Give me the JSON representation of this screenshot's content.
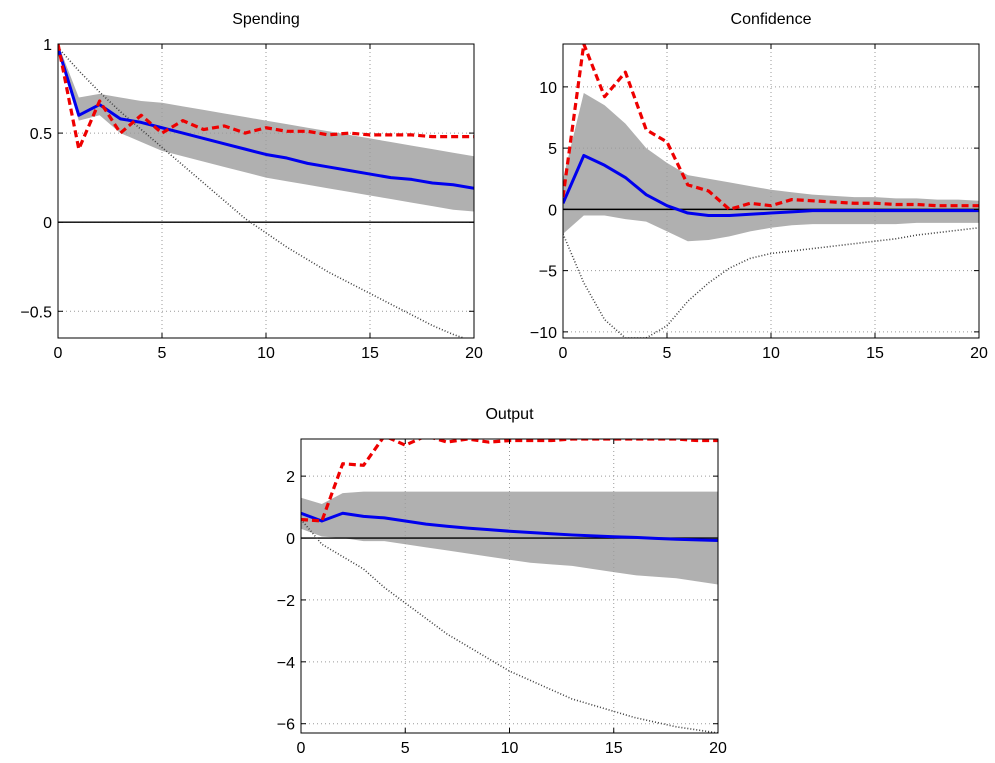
{
  "chart_data": [
    {
      "type": "line",
      "title": "Spending",
      "xlabel": "",
      "ylabel": "",
      "xlim": [
        0,
        20
      ],
      "ylim": [
        -0.65,
        1
      ],
      "xticks": [
        0,
        5,
        10,
        15,
        20
      ],
      "yticks": [
        -0.5,
        0,
        0.5,
        1
      ],
      "xtick_labels": [
        "0",
        "5",
        "10",
        "15",
        "20"
      ],
      "ytick_labels": [
        "−0.5",
        "0",
        "0.5",
        "1"
      ],
      "grid": true,
      "zero_line": true,
      "x": [
        0,
        1,
        2,
        3,
        4,
        5,
        6,
        7,
        8,
        9,
        10,
        11,
        12,
        13,
        14,
        15,
        16,
        17,
        18,
        19,
        20
      ],
      "band": {
        "upper": [
          1.0,
          0.7,
          0.72,
          0.7,
          0.68,
          0.67,
          0.65,
          0.63,
          0.61,
          0.59,
          0.57,
          0.55,
          0.53,
          0.51,
          0.49,
          0.47,
          0.45,
          0.43,
          0.41,
          0.39,
          0.37
        ],
        "lower": [
          0.95,
          0.57,
          0.6,
          0.5,
          0.45,
          0.4,
          0.37,
          0.34,
          0.31,
          0.28,
          0.25,
          0.23,
          0.21,
          0.19,
          0.17,
          0.15,
          0.13,
          0.11,
          0.09,
          0.07,
          0.06
        ],
        "color": "#b0b0b0"
      },
      "series": [
        {
          "values": [
            0.98,
            0.6,
            0.66,
            0.58,
            0.56,
            0.53,
            0.5,
            0.47,
            0.44,
            0.41,
            0.38,
            0.36,
            0.33,
            0.31,
            0.29,
            0.27,
            0.25,
            0.24,
            0.22,
            0.21,
            0.19
          ],
          "color": "#0000ee",
          "style": "solid"
        },
        {
          "values": [
            1.0,
            0.41,
            0.68,
            0.5,
            0.6,
            0.5,
            0.57,
            0.52,
            0.54,
            0.5,
            0.53,
            0.51,
            0.51,
            0.49,
            0.5,
            0.49,
            0.49,
            0.49,
            0.48,
            0.48,
            0.48
          ],
          "color": "#ee0000",
          "style": "dashed"
        },
        {
          "values": [
            0.98,
            0.85,
            0.73,
            0.62,
            0.52,
            0.42,
            0.32,
            0.22,
            0.12,
            0.02,
            -0.06,
            -0.14,
            -0.21,
            -0.28,
            -0.34,
            -0.4,
            -0.46,
            -0.52,
            -0.58,
            -0.63,
            -0.67
          ],
          "color": "#404040",
          "style": "dotted"
        }
      ]
    },
    {
      "type": "line",
      "title": "Confidence",
      "xlabel": "",
      "ylabel": "",
      "xlim": [
        0,
        20
      ],
      "ylim": [
        -10.5,
        13.5
      ],
      "xticks": [
        0,
        5,
        10,
        15,
        20
      ],
      "yticks": [
        -10,
        -5,
        0,
        5,
        10
      ],
      "xtick_labels": [
        "0",
        "5",
        "10",
        "15",
        "20"
      ],
      "ytick_labels": [
        "−10",
        "−5",
        "0",
        "5",
        "10"
      ],
      "grid": true,
      "zero_line": true,
      "x": [
        0,
        1,
        2,
        3,
        4,
        5,
        6,
        7,
        8,
        9,
        10,
        11,
        12,
        13,
        14,
        15,
        16,
        17,
        18,
        19,
        20
      ],
      "band": {
        "upper": [
          2.5,
          9.5,
          8.5,
          7.0,
          5.0,
          3.8,
          2.8,
          2.5,
          2.2,
          1.9,
          1.6,
          1.4,
          1.2,
          1.1,
          1.0,
          1.0,
          0.9,
          0.9,
          0.8,
          0.8,
          0.7
        ],
        "lower": [
          -2.0,
          -0.5,
          -0.5,
          -0.8,
          -1.0,
          -1.8,
          -2.6,
          -2.5,
          -2.2,
          -1.8,
          -1.5,
          -1.3,
          -1.2,
          -1.2,
          -1.2,
          -1.2,
          -1.2,
          -1.1,
          -1.1,
          -1.1,
          -1.1
        ],
        "color": "#b0b0b0"
      },
      "series": [
        {
          "values": [
            0.5,
            4.4,
            3.6,
            2.6,
            1.2,
            0.3,
            -0.3,
            -0.5,
            -0.5,
            -0.4,
            -0.3,
            -0.2,
            -0.1,
            -0.1,
            -0.1,
            -0.1,
            -0.1,
            -0.1,
            -0.1,
            -0.1,
            -0.1
          ],
          "color": "#0000ee",
          "style": "solid"
        },
        {
          "values": [
            1.0,
            13.5,
            9.2,
            11.2,
            6.5,
            5.5,
            2.0,
            1.5,
            0.0,
            0.5,
            0.3,
            0.8,
            0.7,
            0.6,
            0.5,
            0.5,
            0.4,
            0.4,
            0.3,
            0.3,
            0.3
          ],
          "color": "#ee0000",
          "style": "dashed"
        },
        {
          "values": [
            -2.0,
            -6.0,
            -9.0,
            -10.5,
            -10.5,
            -9.5,
            -7.5,
            -6.0,
            -4.8,
            -4.0,
            -3.6,
            -3.4,
            -3.2,
            -3.0,
            -2.8,
            -2.6,
            -2.4,
            -2.1,
            -1.9,
            -1.7,
            -1.5
          ],
          "color": "#404040",
          "style": "dotted"
        }
      ]
    },
    {
      "type": "line",
      "title": "Output",
      "xlabel": "",
      "ylabel": "",
      "xlim": [
        0,
        20
      ],
      "ylim": [
        -6.3,
        3.2
      ],
      "xticks": [
        0,
        5,
        10,
        15,
        20
      ],
      "yticks": [
        -6,
        -4,
        -2,
        0,
        2
      ],
      "xtick_labels": [
        "0",
        "5",
        "10",
        "15",
        "20"
      ],
      "ytick_labels": [
        "−6",
        "−4",
        "−2",
        "0",
        "2"
      ],
      "grid": true,
      "zero_line": true,
      "x": [
        0,
        1,
        2,
        3,
        4,
        5,
        6,
        7,
        8,
        9,
        10,
        11,
        12,
        13,
        14,
        15,
        16,
        17,
        18,
        19,
        20
      ],
      "band": {
        "upper": [
          1.3,
          1.1,
          1.45,
          1.5,
          1.5,
          1.5,
          1.5,
          1.5,
          1.5,
          1.5,
          1.5,
          1.5,
          1.5,
          1.5,
          1.5,
          1.5,
          1.5,
          1.5,
          1.5,
          1.5,
          1.5
        ],
        "lower": [
          0.3,
          0.05,
          0.0,
          -0.1,
          -0.1,
          -0.2,
          -0.3,
          -0.4,
          -0.5,
          -0.6,
          -0.7,
          -0.8,
          -0.85,
          -0.9,
          -1.0,
          -1.1,
          -1.2,
          -1.25,
          -1.3,
          -1.4,
          -1.5
        ],
        "color": "#b0b0b0"
      },
      "series": [
        {
          "values": [
            0.8,
            0.55,
            0.8,
            0.7,
            0.65,
            0.55,
            0.45,
            0.38,
            0.32,
            0.27,
            0.22,
            0.18,
            0.14,
            0.1,
            0.07,
            0.04,
            0.02,
            -0.01,
            -0.04,
            -0.06,
            -0.08
          ],
          "color": "#0000ee",
          "style": "solid"
        },
        {
          "values": [
            0.6,
            0.55,
            2.4,
            2.35,
            3.3,
            3.0,
            3.3,
            3.1,
            3.2,
            3.1,
            3.15,
            3.15,
            3.15,
            3.2,
            3.2,
            3.2,
            3.2,
            3.2,
            3.2,
            3.15,
            3.15
          ],
          "color": "#ee0000",
          "style": "dashed"
        },
        {
          "values": [
            0.6,
            -0.2,
            -0.6,
            -1.0,
            -1.6,
            -2.1,
            -2.6,
            -3.1,
            -3.5,
            -3.9,
            -4.3,
            -4.6,
            -4.9,
            -5.2,
            -5.4,
            -5.6,
            -5.8,
            -5.95,
            -6.1,
            -6.2,
            -6.3
          ],
          "color": "#404040",
          "style": "dotted"
        }
      ]
    }
  ]
}
